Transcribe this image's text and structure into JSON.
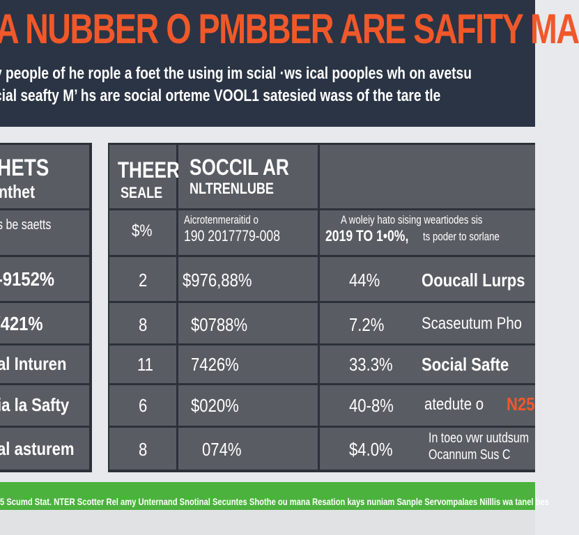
{
  "header": {
    "title": "A NUBBER O PMBBER ARE SAFITY MA",
    "subtitle_line1": "y people of he rople a foet the using im scial ·ws ical pooples wh on avetsu",
    "subtitle_line2": "cial seafty M’ hs are social orteme VOOL1 satesied wass of the tare tle"
  },
  "left_table": {
    "header_line1": "HETS",
    "header_line2": "nthet",
    "sub_header": "s be saetts",
    "rows": [
      "-9152%",
      "/421%",
      "al Inturen",
      "ia la Safty",
      "al asturem"
    ]
  },
  "right_table": {
    "col1_header_line1": "THEER",
    "col1_header_line2": "SEALE",
    "col2_header_line1": "SOCCIL AR",
    "col2_header_line2": "NLTRENLUBE",
    "sub_col1": "$%",
    "sub_col2_line1": "Aicrotenmeraitid o",
    "sub_col2_line2": "190 2017779-008",
    "sub_col3_line1": "A woleiy hato sising weartiodes sis",
    "sub_col3_line2": "2019 TO 1•0%,",
    "sub_col3_line2b": "ts poder to sorlane",
    "rows": [
      {
        "c1": "2",
        "c2": "$976,88%",
        "c3": "44%",
        "c4": "Ooucall Lurps"
      },
      {
        "c1": "8",
        "c2": "$0788%",
        "c3": "7.2%",
        "c4": "Scaseutum Pho"
      },
      {
        "c1": "11",
        "c2": "7426%",
        "c3": "33.3%",
        "c4": "Social Safte"
      },
      {
        "c1": "6",
        "c2": "$020%",
        "c3": "40-8%",
        "c4": "atedute o",
        "c4b": "N25"
      },
      {
        "c1": "8",
        "c2": "074%",
        "c3": "$4.0%",
        "c4": "In toeo vwr uutdsum",
        "c4_line2": "Ocannum Sus C"
      }
    ]
  },
  "footer": {
    "strip_text": "5 Scumd Stat. NTER Scotter Rel amy Unternand Snotinal Secuntes Shothe ou mana Resation kays nuniam Sanple Servompalaes Nilllis wa tanel bes"
  },
  "colors": {
    "header_bg": "#2b3444",
    "title_orange": "#f0582a",
    "table_bg": "#2c3139",
    "cell_bg": "#595d63",
    "footer_green": "#4bb23d",
    "page_bg": "#e8e9ec"
  }
}
